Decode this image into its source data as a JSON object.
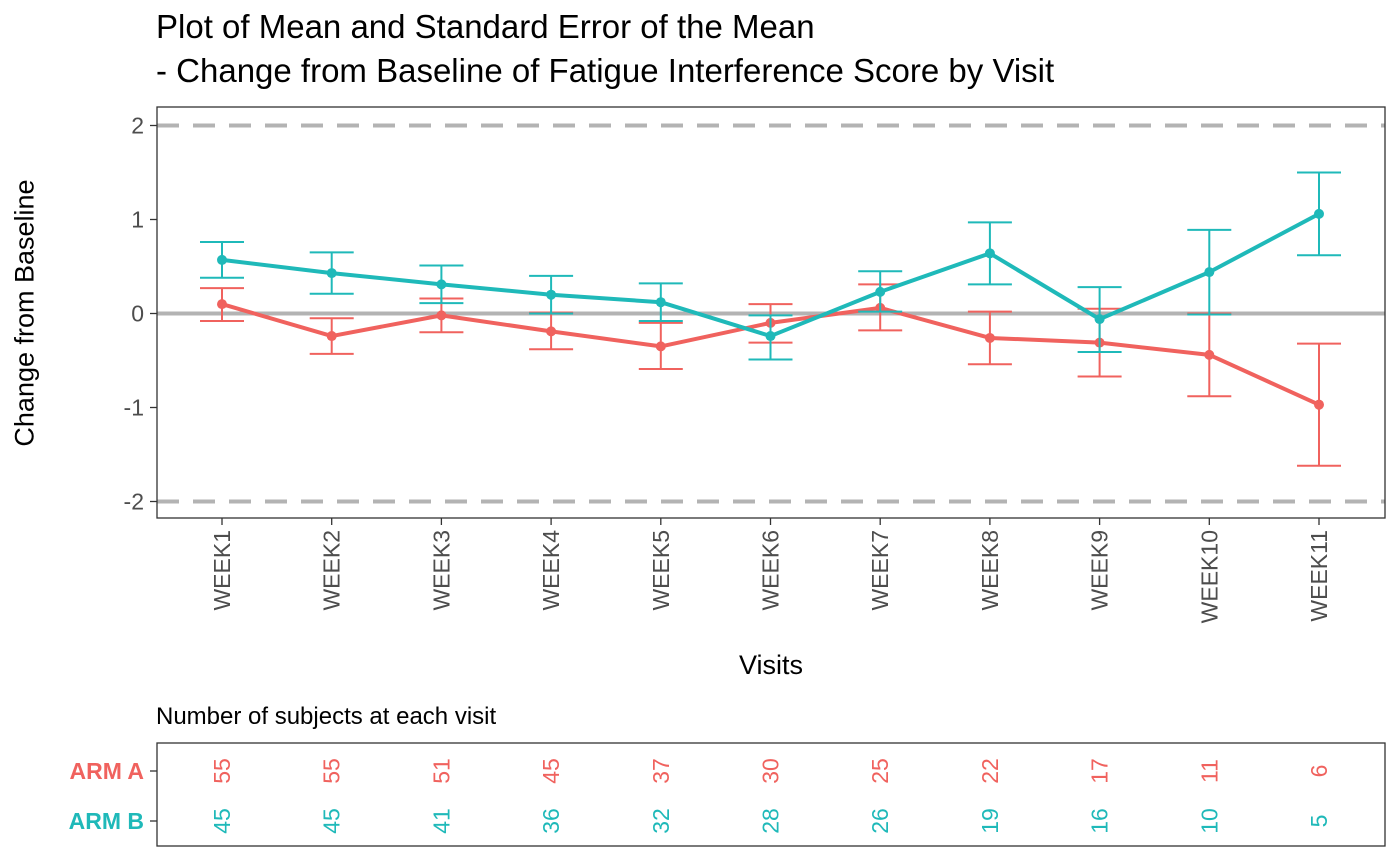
{
  "chart_data": {
    "type": "line",
    "title": "Plot of Mean and Standard Error of the Mean",
    "subtitle": "- Change from Baseline of Fatigue Interference Score by Visit",
    "xlabel": "Visits",
    "ylabel": "Change from Baseline",
    "categories": [
      "WEEK1",
      "WEEK2",
      "WEEK3",
      "WEEK4",
      "WEEK5",
      "WEEK6",
      "WEEK7",
      "WEEK8",
      "WEEK9",
      "WEEK10",
      "WEEK11"
    ],
    "ylim": [
      -2.2,
      2.2
    ],
    "yticks": [
      -2,
      -1,
      0,
      1,
      2
    ],
    "ytick_labels": [
      "-2",
      "-1",
      "0",
      "1",
      "2"
    ],
    "reference_lines": [
      {
        "y": 2,
        "style": "dashed",
        "color": "#b3b3b3"
      },
      {
        "y": 0,
        "style": "solid",
        "color": "#b3b3b3"
      },
      {
        "y": -2,
        "style": "dashed",
        "color": "#b3b3b3"
      }
    ],
    "grid": false,
    "series": [
      {
        "name": "ARM A",
        "color": "#f0625e",
        "mean": [
          0.1,
          -0.24,
          -0.02,
          -0.19,
          -0.35,
          -0.1,
          0.06,
          -0.26,
          -0.31,
          -0.44,
          -0.97
        ],
        "lower": [
          -0.08,
          -0.43,
          -0.2,
          -0.38,
          -0.59,
          -0.31,
          -0.18,
          -0.54,
          -0.67,
          -0.88,
          -1.62
        ],
        "upper": [
          0.27,
          -0.05,
          0.16,
          0.01,
          -0.1,
          0.1,
          0.31,
          0.02,
          0.05,
          0.0,
          -0.32
        ]
      },
      {
        "name": "ARM B",
        "color": "#1fb9b9",
        "mean": [
          0.57,
          0.43,
          0.31,
          0.2,
          0.12,
          -0.24,
          0.23,
          0.64,
          -0.06,
          0.44,
          1.06
        ],
        "lower": [
          0.38,
          0.21,
          0.11,
          0.0,
          -0.08,
          -0.49,
          0.02,
          0.31,
          -0.41,
          -0.01,
          0.62
        ],
        "upper": [
          0.76,
          0.65,
          0.51,
          0.4,
          0.32,
          -0.02,
          0.45,
          0.97,
          0.28,
          0.89,
          1.5
        ]
      }
    ],
    "risk_table": {
      "title": "Number of subjects at each visit",
      "rows": [
        {
          "label": "ARM A",
          "color": "#f0625e",
          "counts": [
            "55",
            "55",
            "51",
            "45",
            "37",
            "30",
            "25",
            "22",
            "17",
            "11",
            "6"
          ]
        },
        {
          "label": "ARM B",
          "color": "#1fb9b9",
          "counts": [
            "45",
            "45",
            "41",
            "36",
            "32",
            "28",
            "26",
            "19",
            "16",
            "10",
            "5"
          ]
        }
      ]
    }
  }
}
